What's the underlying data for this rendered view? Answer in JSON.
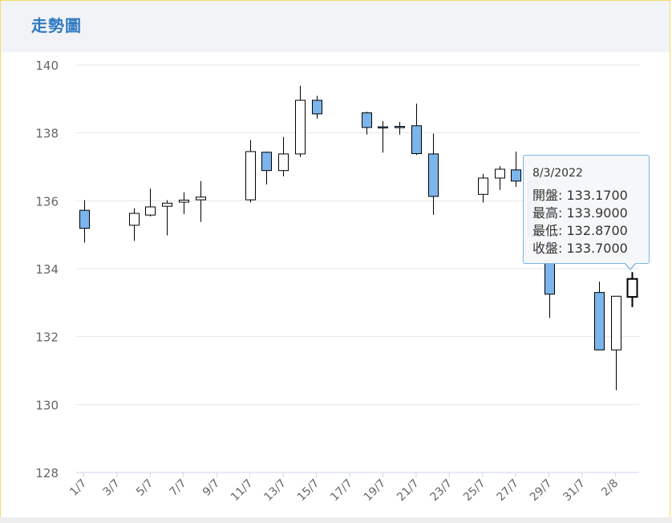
{
  "header": {
    "title": "走勢圖"
  },
  "chart_data": {
    "type": "candlestick",
    "ylim": [
      128,
      140
    ],
    "yticks": [
      128,
      130,
      132,
      134,
      136,
      138,
      140
    ],
    "xtick_labels": [
      "1/7",
      "3/7",
      "5/7",
      "7/7",
      "9/7",
      "11/7",
      "13/7",
      "15/7",
      "17/7",
      "19/7",
      "21/7",
      "23/7",
      "25/7",
      "27/7",
      "29/7",
      "31/7",
      "2/8"
    ],
    "grid": true,
    "candles": [
      {
        "x": 0,
        "open": 135.72,
        "high": 136.02,
        "low": 134.77,
        "close": 135.19
      },
      {
        "x": 3,
        "open": 135.28,
        "high": 135.78,
        "low": 134.82,
        "close": 135.63
      },
      {
        "x": 4,
        "open": 135.58,
        "high": 136.36,
        "low": 135.54,
        "close": 135.82
      },
      {
        "x": 5,
        "open": 135.84,
        "high": 136.02,
        "low": 134.98,
        "close": 135.93
      },
      {
        "x": 6,
        "open": 135.96,
        "high": 136.25,
        "low": 135.61,
        "close": 136.02
      },
      {
        "x": 7,
        "open": 136.03,
        "high": 136.58,
        "low": 135.38,
        "close": 136.11
      },
      {
        "x": 10,
        "open": 136.03,
        "high": 137.79,
        "low": 135.95,
        "close": 137.45
      },
      {
        "x": 11,
        "open": 137.43,
        "high": 137.45,
        "low": 136.48,
        "close": 136.89
      },
      {
        "x": 12,
        "open": 136.89,
        "high": 137.88,
        "low": 136.72,
        "close": 137.38
      },
      {
        "x": 13,
        "open": 137.38,
        "high": 139.39,
        "low": 137.29,
        "close": 138.96
      },
      {
        "x": 14,
        "open": 138.96,
        "high": 139.09,
        "low": 138.42,
        "close": 138.56
      },
      {
        "x": 17,
        "open": 138.59,
        "high": 138.62,
        "low": 137.95,
        "close": 138.16
      },
      {
        "x": 18,
        "open": 138.18,
        "high": 138.35,
        "low": 137.42,
        "close": 138.15
      },
      {
        "x": 19,
        "open": 138.19,
        "high": 138.32,
        "low": 137.95,
        "close": 138.18
      },
      {
        "x": 20,
        "open": 138.21,
        "high": 138.86,
        "low": 137.35,
        "close": 137.39
      },
      {
        "x": 21,
        "open": 137.38,
        "high": 137.98,
        "low": 135.59,
        "close": 136.13
      },
      {
        "x": 24,
        "open": 136.19,
        "high": 136.79,
        "low": 135.95,
        "close": 136.67
      },
      {
        "x": 25,
        "open": 136.67,
        "high": 137.02,
        "low": 136.32,
        "close": 136.93
      },
      {
        "x": 26,
        "open": 136.91,
        "high": 137.45,
        "low": 136.41,
        "close": 136.58
      },
      {
        "x": 27,
        "open": 136.58,
        "high": 136.62,
        "low": 134.9,
        "close": 134.95
      },
      {
        "x": 28,
        "open": 134.25,
        "high": 134.35,
        "low": 132.55,
        "close": 133.25
      },
      {
        "x": 31,
        "open": 133.3,
        "high": 133.62,
        "low": 131.61,
        "close": 131.61
      },
      {
        "x": 32,
        "open": 131.61,
        "high": 133.19,
        "low": 130.42,
        "close": 133.19
      },
      {
        "x": 33,
        "open": 133.17,
        "high": 133.9,
        "low": 132.87,
        "close": 133.7
      }
    ]
  },
  "tooltip": {
    "date": "8/3/2022",
    "open": "開盤: 133.1700",
    "high": "最高: 133.9000",
    "low": "最低: 132.8700",
    "close": "收盤: 133.7000"
  },
  "colors": {
    "up": "#ffffff",
    "down": "#7cb5ec",
    "grid": "#e6e6e6",
    "axis": "#ccd6eb",
    "tick_text": "#666666"
  }
}
